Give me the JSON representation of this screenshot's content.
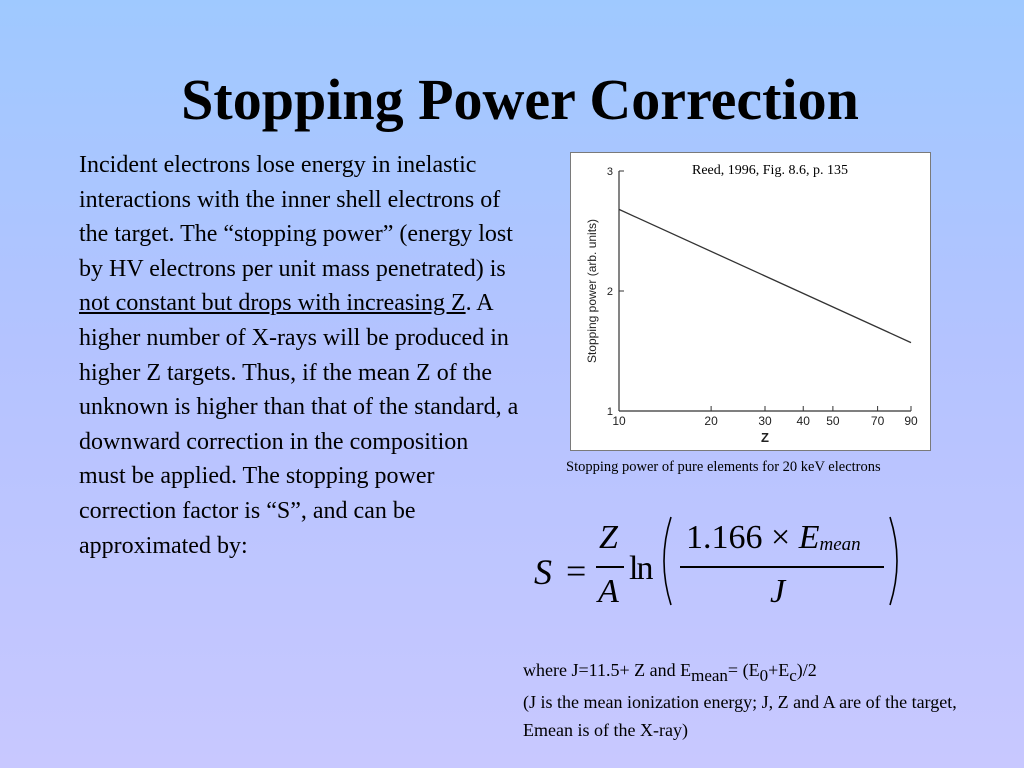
{
  "slide": {
    "title": "Stopping Power Correction",
    "body": {
      "before": "Incident electrons lose energy in inelastic interactions with the inner shell electrons of the target. The “stopping power” (energy lost by HV electrons per unit mass penetrated) is ",
      "underlined": "not constant but drops with increasing Z",
      "after": ". A higher number of X-rays will be produced in higher Z targets. Thus, if the mean Z of the unknown is higher than that of the standard, a downward correction in the composition must be applied. The stopping power correction factor is “S”, and can be approximated by:"
    }
  },
  "figure": {
    "source": "Reed, 1996, Fig. 8.6, p. 135",
    "caption": "Stopping power of pure elements for 20 keV electrons"
  },
  "chart_data": {
    "type": "line",
    "xscale": "log",
    "xlabel": "Z",
    "ylabel": "Stopping power (arb. units)",
    "xticks": [
      "10",
      "20",
      "30",
      "40",
      "50",
      "70",
      "90"
    ],
    "yticks": [
      "1",
      "2",
      "3"
    ],
    "xlim": [
      10,
      90
    ],
    "ylim": [
      1,
      3
    ],
    "x": [
      10,
      90
    ],
    "y": [
      2.68,
      1.57
    ],
    "grid": false,
    "legend": "none"
  },
  "equation": {
    "S": "S",
    "equals": "=",
    "frac_num": "Z",
    "frac_den": "A",
    "ln": "ln",
    "coef": "1.166",
    "times": "×",
    "E": "E",
    "E_sub": "mean",
    "J": "J"
  },
  "note": {
    "line1_a": "where J=11.5+ Z and E",
    "line1_sub1": "mean",
    "line1_b": "= (E",
    "line1_sub2": "0",
    "line1_c": "+E",
    "line1_sub3": "c",
    "line1_d": ")/2",
    "line2": "(J is the mean ionization energy; J, Z and A are of the target, Emean is of the X-ray)"
  }
}
